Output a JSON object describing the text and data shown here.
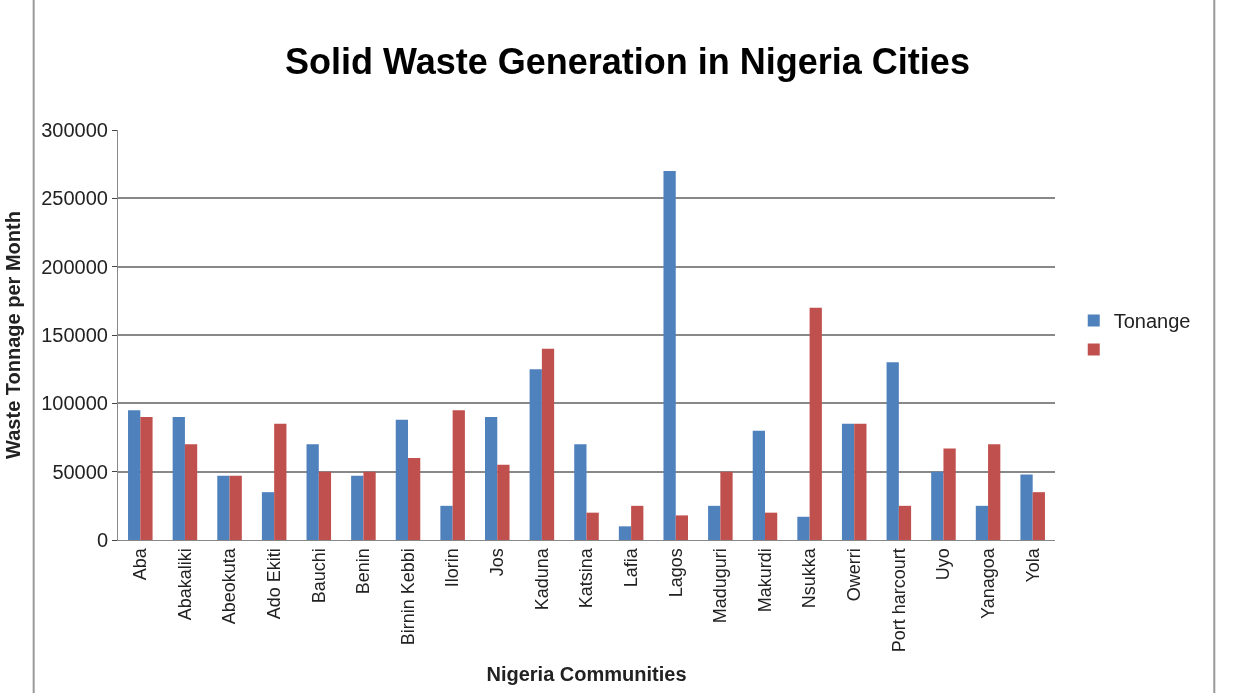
{
  "chart_data": {
    "type": "bar",
    "title": "Solid Waste Generation in Nigeria Cities",
    "xlabel": "Nigeria Communities",
    "ylabel": "Waste Tonnage per Month",
    "categories": [
      "Aba",
      "Abakaliki",
      "Abeokuta",
      "Ado Ekiti",
      "Bauchi",
      "Benin",
      "Birnin Kebbi",
      "Ilorin",
      "Jos",
      "Kaduna",
      "Katsina",
      "Lafia",
      "Lagos",
      "Maduguri",
      "Makurdi",
      "Nsukka",
      "Owerri",
      "Port harcourt",
      "Uyo",
      "Yanagoa",
      "Yola"
    ],
    "series": [
      {
        "name": "Tonange",
        "color": "#4f81bd",
        "values": [
          95000,
          90000,
          47000,
          35000,
          70000,
          47000,
          88000,
          25000,
          90000,
          125000,
          70000,
          10000,
          270000,
          25000,
          80000,
          17000,
          85000,
          130000,
          50000,
          25000,
          48000
        ]
      },
      {
        "color": "#c0504d",
        "values": [
          90000,
          70000,
          47000,
          85000,
          50000,
          50000,
          60000,
          95000,
          55000,
          140000,
          20000,
          25000,
          18000,
          50000,
          20000,
          170000,
          85000,
          25000,
          67000,
          70000,
          35000
        ]
      }
    ],
    "ylim": [
      0,
      300000
    ],
    "yticks": [
      0,
      50000,
      100000,
      150000,
      200000,
      250000,
      300000
    ],
    "grid": "y",
    "legend": "right"
  }
}
